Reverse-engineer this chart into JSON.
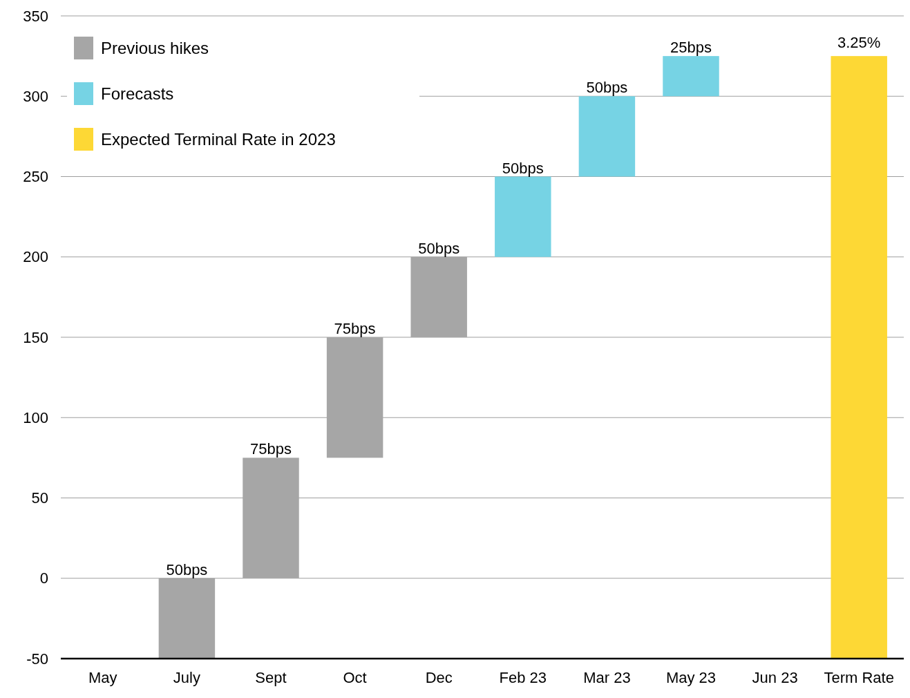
{
  "chart_data": {
    "type": "bar",
    "categories": [
      "May",
      "July",
      "Sept",
      "Oct",
      "Dec",
      "Feb 23",
      "Mar 23",
      "May 23",
      "Jun 23",
      "Term Rate"
    ],
    "series": [
      {
        "name": "Previous hikes",
        "color": "#a6a6a6",
        "values": [
          null,
          50,
          75,
          75,
          50,
          null,
          null,
          null,
          null,
          null
        ],
        "base": [
          null,
          -50,
          0,
          75,
          150,
          null,
          null,
          null,
          null,
          null
        ],
        "value_labels": [
          null,
          "50bps",
          "75bps",
          "75bps",
          "50bps",
          null,
          null,
          null,
          null,
          null
        ]
      },
      {
        "name": "Forecasts",
        "color": "#76d3e4",
        "values": [
          null,
          null,
          null,
          null,
          null,
          50,
          50,
          25,
          null,
          null
        ],
        "base": [
          null,
          null,
          null,
          null,
          null,
          200,
          250,
          300,
          null,
          null
        ],
        "value_labels": [
          null,
          null,
          null,
          null,
          null,
          "50bps",
          "50bps",
          "25bps",
          null,
          null
        ]
      },
      {
        "name": "Expected Terminal Rate in 2023",
        "color": "#fdd835",
        "values": [
          null,
          null,
          null,
          null,
          null,
          null,
          null,
          null,
          null,
          375
        ],
        "base": [
          null,
          null,
          null,
          null,
          null,
          null,
          null,
          null,
          null,
          -50
        ]
      }
    ],
    "annotations": [
      {
        "text": "3.25%",
        "x": "Term Rate",
        "y": 325
      }
    ],
    "ylim": [
      -50,
      350
    ],
    "yticks": [
      -50,
      0,
      50,
      100,
      150,
      200,
      250,
      300,
      350
    ],
    "grid": "y",
    "legend": "top left"
  }
}
